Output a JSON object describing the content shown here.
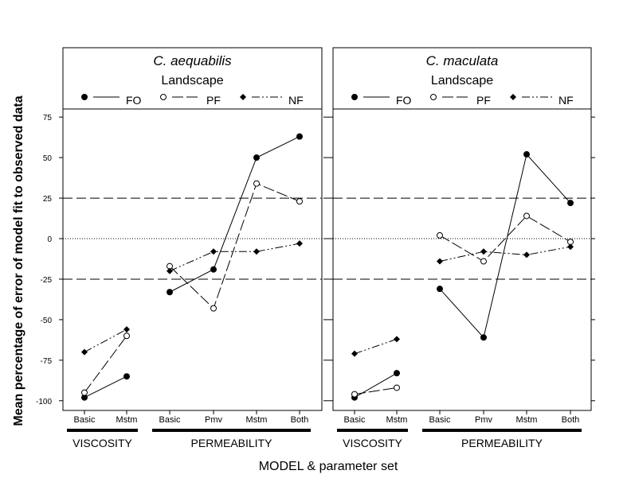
{
  "chart_data": {
    "type": "line",
    "y_axis": {
      "label": "Mean percentage of error of model fit to observed data",
      "ticks": [
        75,
        50,
        25,
        0,
        -25,
        -50,
        -75,
        -100
      ],
      "tick_labels": [
        "75",
        "50",
        "25",
        "0",
        "-25",
        "-50",
        "-75",
        "-100"
      ],
      "range": [
        -106,
        80
      ]
    },
    "x_axis": {
      "label": "MODEL & parameter set",
      "tick_labels": [
        "Basic",
        "Mstm",
        "Basic",
        "Pmv",
        "Mstm",
        "Both"
      ],
      "groups": [
        {
          "label": "VISCOSITY",
          "from": 0,
          "to": 1
        },
        {
          "label": "PERMEABILITY",
          "from": 2,
          "to": 5
        }
      ]
    },
    "reference_lines": [
      {
        "y": 25,
        "style": "dashed"
      },
      {
        "y": 0,
        "style": "dotted"
      },
      {
        "y": -25,
        "style": "dashed"
      }
    ],
    "legend": {
      "title": "Landscape",
      "entries": [
        {
          "name": "FO",
          "marker": "filled-circle",
          "line": "solid"
        },
        {
          "name": "PF",
          "marker": "open-circle",
          "line": "long-dash"
        },
        {
          "name": "NF",
          "marker": "filled-diamond",
          "line": "dash-dot"
        }
      ]
    },
    "panels": [
      {
        "title": "C. aequabilis",
        "series": [
          {
            "name": "FO",
            "viscosity": [
              -98,
              -85
            ],
            "permeability": [
              -33,
              -19,
              50,
              63
            ]
          },
          {
            "name": "PF",
            "viscosity": [
              -95,
              -60
            ],
            "permeability": [
              -17,
              -43,
              34,
              23
            ]
          },
          {
            "name": "NF",
            "viscosity": [
              -70,
              -56
            ],
            "permeability": [
              -20,
              -8,
              -8,
              -3
            ]
          }
        ]
      },
      {
        "title": "C. maculata",
        "series": [
          {
            "name": "FO",
            "viscosity": [
              -98,
              -83
            ],
            "permeability": [
              -31,
              -61,
              52,
              22
            ]
          },
          {
            "name": "PF",
            "viscosity": [
              -96,
              -92
            ],
            "permeability": [
              2,
              -14,
              14,
              -2
            ]
          },
          {
            "name": "NF",
            "viscosity": [
              -71,
              -62
            ],
            "permeability": [
              -14,
              -8,
              -10,
              -5
            ]
          }
        ]
      }
    ]
  }
}
